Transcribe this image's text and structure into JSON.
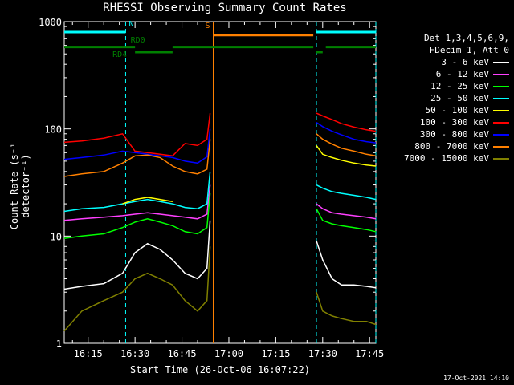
{
  "chart_data": {
    "type": "line",
    "title": "RHESSI Observing Summary Count Rates",
    "xlabel": "Start Time (26-Oct-06 16:07:22)",
    "ylabel": "Count Rate (s⁻¹ detector⁻¹)",
    "yscale": "log",
    "xlim": [
      "16:07:22",
      "17:47:00"
    ],
    "ylim": [
      1,
      1000
    ],
    "x_ticks": [
      "16:15",
      "16:30",
      "16:45",
      "17:00",
      "17:15",
      "17:30",
      "17:45"
    ],
    "y_ticks": [
      "1",
      "10",
      "100",
      "1000"
    ],
    "legend_header": [
      "Det 1,3,4,5,6,9,",
      "FDecim 1, Att 0"
    ],
    "legend_position": "right",
    "series": [
      {
        "name": "3 - 6 keV",
        "color": "#ffffff",
        "segments": [
          {
            "x": [
              "16:07:22",
              "16:13",
              "16:20",
              "16:26",
              "16:30",
              "16:34",
              "16:38",
              "16:42",
              "16:46",
              "16:50",
              "16:53",
              "16:54"
            ],
            "y": [
              3.2,
              3.4,
              3.6,
              4.5,
              7,
              8.5,
              7.5,
              6,
              4.5,
              4,
              5,
              14
            ]
          },
          {
            "x": [
              "17:28",
              "17:30",
              "17:33",
              "17:36",
              "17:40",
              "17:44",
              "17:47"
            ],
            "y": [
              9,
              6,
              4,
              3.5,
              3.5,
              3.4,
              3.3
            ]
          }
        ]
      },
      {
        "name": "6 - 12 keV",
        "color": "#ff40ff",
        "segments": [
          {
            "x": [
              "16:07:22",
              "16:13",
              "16:20",
              "16:26",
              "16:30",
              "16:34",
              "16:38",
              "16:42",
              "16:46",
              "16:50",
              "16:53",
              "16:54"
            ],
            "y": [
              14,
              14.5,
              15,
              15.5,
              16,
              16.5,
              16,
              15.5,
              15,
              14.5,
              16,
              30
            ]
          },
          {
            "x": [
              "17:28",
              "17:30",
              "17:33",
              "17:36",
              "17:40",
              "17:44",
              "17:47"
            ],
            "y": [
              20,
              18,
              16.5,
              16,
              15.5,
              15,
              14.5
            ]
          }
        ]
      },
      {
        "name": "12 - 25 keV",
        "color": "#00ff00",
        "segments": [
          {
            "x": [
              "16:07:22",
              "16:13",
              "16:20",
              "16:26",
              "16:30",
              "16:34",
              "16:38",
              "16:42",
              "16:46",
              "16:50",
              "16:53",
              "16:54"
            ],
            "y": [
              9.5,
              10,
              10.5,
              12,
              13.5,
              14.5,
              13.5,
              12.5,
              11,
              10.5,
              12,
              25
            ]
          },
          {
            "x": [
              "17:28",
              "17:30",
              "17:33",
              "17:36",
              "17:40",
              "17:44",
              "17:47"
            ],
            "y": [
              18,
              14,
              13,
              12.5,
              12,
              11.5,
              11
            ]
          }
        ]
      },
      {
        "name": "25 - 50 keV",
        "color": "#00ffff",
        "segments": [
          {
            "x": [
              "16:07:22",
              "16:13",
              "16:20",
              "16:26",
              "16:30",
              "16:34",
              "16:38",
              "16:42",
              "16:46",
              "16:50",
              "16:53",
              "16:54"
            ],
            "y": [
              17,
              18,
              18.5,
              20,
              21,
              22,
              21,
              20,
              18.5,
              18,
              20,
              40
            ]
          },
          {
            "x": [
              "17:28",
              "17:30",
              "17:33",
              "17:36",
              "17:40",
              "17:44",
              "17:47"
            ],
            "y": [
              30,
              28,
              26,
              25,
              24,
              23,
              22
            ]
          }
        ]
      },
      {
        "name": "50 - 100 keV",
        "color": "#ffff00",
        "segments": [
          {
            "x": [
              "16:26",
              "16:30",
              "16:34",
              "16:38",
              "16:42"
            ],
            "y": [
              20,
              22,
              23,
              22,
              21
            ]
          },
          {
            "x": [
              "17:28",
              "17:30",
              "17:33",
              "17:36",
              "17:40",
              "17:44",
              "17:47"
            ],
            "y": [
              70,
              58,
              54,
              51,
              48,
              46,
              45
            ]
          }
        ]
      },
      {
        "name": "100 - 300 keV",
        "color": "#ff0000",
        "segments": [
          {
            "x": [
              "16:07:22",
              "16:13",
              "16:20",
              "16:26",
              "16:30",
              "16:34",
              "16:38",
              "16:42",
              "16:46",
              "16:50",
              "16:53",
              "16:54"
            ],
            "y": [
              75,
              77,
              82,
              90,
              62,
              60,
              58,
              56,
              73,
              70,
              80,
              140
            ]
          },
          {
            "x": [
              "17:28",
              "17:30",
              "17:33",
              "17:36",
              "17:40",
              "17:44",
              "17:47"
            ],
            "y": [
              140,
              132,
              122,
              112,
              104,
              98,
              95
            ]
          }
        ]
      },
      {
        "name": "300 - 800 keV",
        "color": "#0000ff",
        "segments": [
          {
            "x": [
              "16:07:22",
              "16:13",
              "16:20",
              "16:26",
              "16:30",
              "16:34",
              "16:38",
              "16:42",
              "16:46",
              "16:50",
              "16:53",
              "16:54"
            ],
            "y": [
              52,
              54,
              57,
              62,
              60,
              58,
              56,
              54,
              50,
              48,
              55,
              100
            ]
          },
          {
            "x": [
              "17:28",
              "17:30",
              "17:33",
              "17:36",
              "17:40",
              "17:44",
              "17:47"
            ],
            "y": [
              115,
              105,
              95,
              88,
              80,
              76,
              74
            ]
          }
        ]
      },
      {
        "name": "800 - 7000 keV",
        "color": "#ff8000",
        "segments": [
          {
            "x": [
              "16:07:22",
              "16:13",
              "16:20",
              "16:26",
              "16:30",
              "16:34",
              "16:38",
              "16:42",
              "16:46",
              "16:50",
              "16:53",
              "16:54"
            ],
            "y": [
              36,
              38,
              40,
              48,
              56,
              57,
              54,
              45,
              40,
              38,
              42,
              80
            ]
          },
          {
            "x": [
              "17:28",
              "17:30",
              "17:33",
              "17:36",
              "17:40",
              "17:44",
              "17:47"
            ],
            "y": [
              90,
              80,
              72,
              66,
              62,
              58,
              56
            ]
          }
        ]
      },
      {
        "name": "7000 - 15000 keV",
        "color": "#808000",
        "segments": [
          {
            "x": [
              "16:07:22",
              "16:13",
              "16:20",
              "16:26",
              "16:30",
              "16:34",
              "16:38",
              "16:42",
              "16:46",
              "16:50",
              "16:53",
              "16:54"
            ],
            "y": [
              1.3,
              2,
              2.5,
              3,
              4,
              4.5,
              4,
              3.5,
              2.5,
              2,
              2.5,
              8
            ]
          },
          {
            "x": [
              "17:28",
              "17:30",
              "17:33",
              "17:36",
              "17:40",
              "17:44",
              "17:47"
            ],
            "y": [
              3,
              2,
              1.8,
              1.7,
              1.6,
              1.6,
              1.5
            ]
          }
        ]
      }
    ],
    "flag_bars": [
      {
        "label": "N",
        "color": "#00ffff",
        "level": 800,
        "segments": [
          [
            "16:07:22",
            "16:27"
          ],
          [
            "17:28",
            "17:47"
          ]
        ]
      },
      {
        "label": "S",
        "color": "#ff8000",
        "level": 750,
        "segments": [
          [
            "16:55",
            "17:27"
          ]
        ]
      },
      {
        "label": "RD0",
        "color": "#008000",
        "level": 580,
        "segments": [
          [
            "16:07:22",
            "16:26"
          ],
          [
            "16:26",
            "16:30"
          ],
          [
            "16:42",
            "17:27"
          ],
          [
            "17:31",
            "17:47"
          ]
        ]
      },
      {
        "label": "RD4",
        "color": "#008000",
        "level": 520,
        "segments": [
          [
            "16:30",
            "16:42"
          ],
          [
            "17:28",
            "17:30"
          ]
        ]
      }
    ],
    "vertical_markers": [
      {
        "x": "16:27",
        "color": "#00ffff",
        "style": "dashed"
      },
      {
        "x": "17:28",
        "color": "#00ffff",
        "style": "dashed"
      },
      {
        "x": "17:47",
        "color": "#00ffff",
        "style": "dashed"
      },
      {
        "x": "16:55",
        "color": "#ff8000",
        "style": "solid"
      }
    ]
  },
  "timestamp": "17-Oct-2021 14:10"
}
